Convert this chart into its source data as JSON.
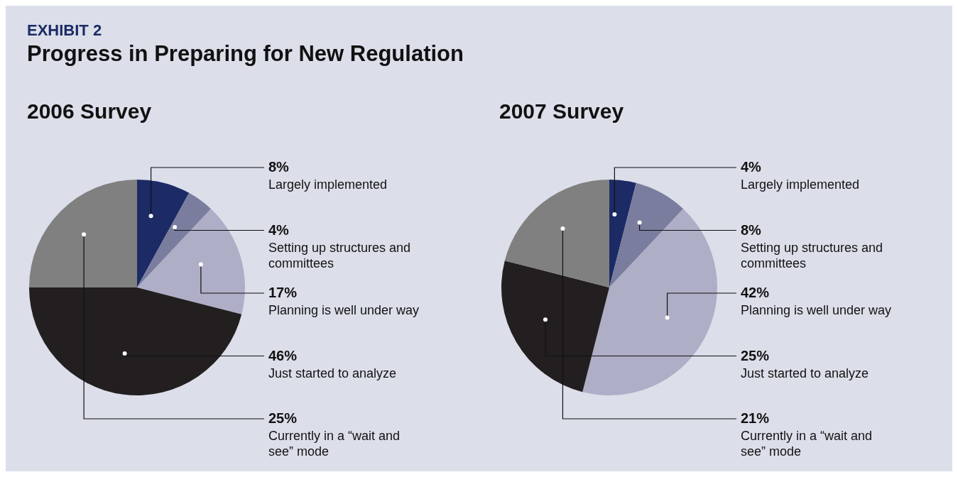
{
  "chart_data": [
    {
      "type": "pie",
      "title": "2006 Survey",
      "annotations": [
        "EXHIBIT 2",
        "Progress in Preparing for New Regulation"
      ],
      "categories": [
        "Largely implemented",
        "Setting up structures and committees",
        "Planning is well under way",
        "Just started to analyze",
        "Currently in a “wait and see” mode"
      ],
      "values": [
        8,
        4,
        17,
        46,
        25
      ],
      "value_labels": [
        "8%",
        "4%",
        "17%",
        "46%",
        "25%"
      ],
      "colors": [
        "#1c2b66",
        "#7b7d9e",
        "#aeaec6",
        "#231f20",
        "#808080"
      ]
    },
    {
      "type": "pie",
      "title": "2007 Survey",
      "categories": [
        "Largely implemented",
        "Setting up structures and committees",
        "Planning is well under way",
        "Just started to analyze",
        "Currently in a “wait and see” mode"
      ],
      "values": [
        4,
        8,
        42,
        25,
        21
      ],
      "value_labels": [
        "4%",
        "8%",
        "42%",
        "25%",
        "21%"
      ],
      "colors": [
        "#1c2b66",
        "#7b7d9e",
        "#aeaec6",
        "#231f20",
        "#808080"
      ]
    }
  ]
}
